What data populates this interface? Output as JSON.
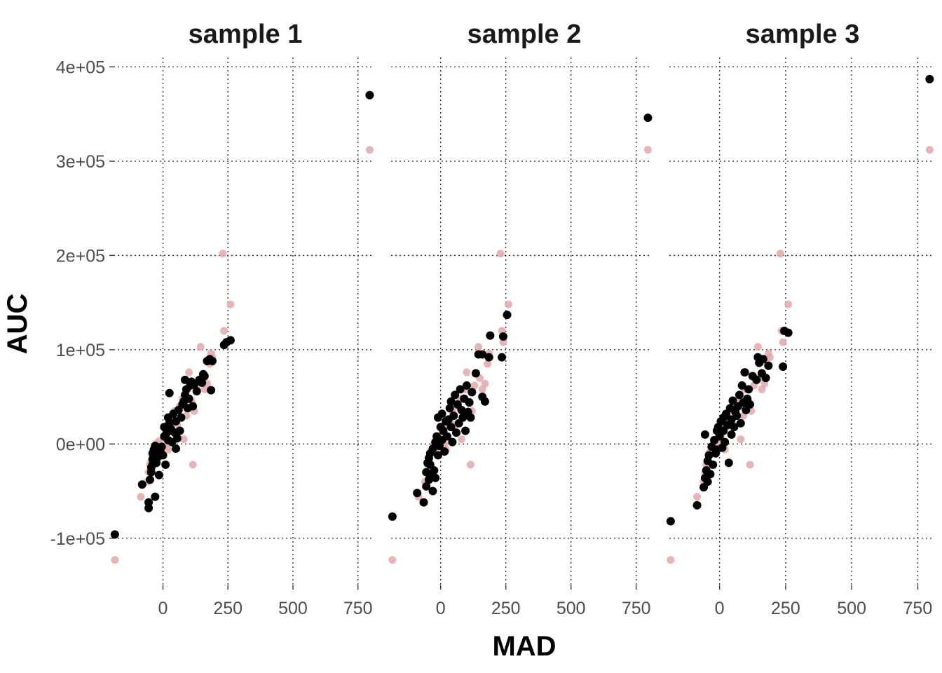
{
  "chart_data": {
    "type": "scatter",
    "xlabel": "MAD",
    "ylabel": "AUC",
    "xlim": [
      -190,
      810
    ],
    "ylim": [
      -150000,
      410000
    ],
    "x_ticks": [
      0,
      250,
      500,
      750
    ],
    "x_tick_labels": [
      "0",
      "250",
      "500",
      "750"
    ],
    "y_ticks": [
      -100000,
      0,
      100000,
      200000,
      300000,
      400000
    ],
    "y_tick_labels": [
      "-1e+05",
      "0e+00",
      "1e+05",
      "2e+05",
      "3e+05",
      "4e+05"
    ],
    "grid": true,
    "legend": "none",
    "reference_color": "#e2a8ad",
    "sample_color": "#000000",
    "reference_points": [
      [
        -185,
        -123000
      ],
      [
        -85,
        -56000
      ],
      [
        -60,
        -40000
      ],
      [
        -55,
        -30000
      ],
      [
        -50,
        -22000
      ],
      [
        -45,
        -18000
      ],
      [
        -40,
        -10000
      ],
      [
        -30,
        -6000
      ],
      [
        -25,
        0
      ],
      [
        -15,
        3000
      ],
      [
        -10,
        -4000
      ],
      [
        0,
        2000
      ],
      [
        5,
        6000
      ],
      [
        10,
        12000
      ],
      [
        15,
        0
      ],
      [
        20,
        -6000
      ],
      [
        25,
        20000
      ],
      [
        35,
        25000
      ],
      [
        45,
        35000
      ],
      [
        55,
        20000
      ],
      [
        65,
        40000
      ],
      [
        75,
        48000
      ],
      [
        80,
        5000
      ],
      [
        90,
        30000
      ],
      [
        95,
        58000
      ],
      [
        100,
        76000
      ],
      [
        110,
        45000
      ],
      [
        115,
        -22000
      ],
      [
        120,
        35000
      ],
      [
        130,
        62000
      ],
      [
        145,
        103000
      ],
      [
        150,
        70000
      ],
      [
        160,
        58000
      ],
      [
        170,
        64000
      ],
      [
        180,
        85000
      ],
      [
        185,
        96000
      ],
      [
        190,
        92000
      ],
      [
        230,
        202000
      ],
      [
        235,
        120000
      ],
      [
        240,
        108000
      ],
      [
        260,
        148000
      ],
      [
        795,
        312000
      ]
    ],
    "series": [
      {
        "points": [
          [
            -185,
            -96000
          ],
          [
            -80,
            -43000
          ],
          [
            -55,
            -68000
          ],
          [
            -55,
            -62000
          ],
          [
            -50,
            -38000
          ],
          [
            -45,
            -30000
          ],
          [
            -45,
            -25000
          ],
          [
            -40,
            -22000
          ],
          [
            -40,
            -16000
          ],
          [
            -40,
            -10000
          ],
          [
            -35,
            -6000
          ],
          [
            -30,
            -56000
          ],
          [
            -30,
            -2000
          ],
          [
            -25,
            -20000
          ],
          [
            -20,
            -14000
          ],
          [
            -15,
            -33000
          ],
          [
            -10,
            -8000
          ],
          [
            -5,
            -3000
          ],
          [
            0,
            -12000
          ],
          [
            5,
            8000
          ],
          [
            5,
            18000
          ],
          [
            10,
            -22000
          ],
          [
            15,
            12000
          ],
          [
            20,
            4000
          ],
          [
            20,
            28000
          ],
          [
            25,
            22000
          ],
          [
            25,
            54000
          ],
          [
            30,
            16000
          ],
          [
            35,
            2000
          ],
          [
            40,
            32000
          ],
          [
            45,
            12000
          ],
          [
            50,
            24000
          ],
          [
            50,
            -5000
          ],
          [
            55,
            6000
          ],
          [
            60,
            36000
          ],
          [
            65,
            14000
          ],
          [
            70,
            28000
          ],
          [
            75,
            42000
          ],
          [
            80,
            45000
          ],
          [
            85,
            52000
          ],
          [
            85,
            68000
          ],
          [
            90,
            58000
          ],
          [
            95,
            38000
          ],
          [
            100,
            48000
          ],
          [
            105,
            62000
          ],
          [
            110,
            66000
          ],
          [
            115,
            40000
          ],
          [
            120,
            63000
          ],
          [
            130,
            56000
          ],
          [
            140,
            68000
          ],
          [
            150,
            65000
          ],
          [
            155,
            74000
          ],
          [
            160,
            72000
          ],
          [
            170,
            88000
          ],
          [
            180,
            90000
          ],
          [
            185,
            57000
          ],
          [
            190,
            88000
          ],
          [
            235,
            105000
          ],
          [
            245,
            108000
          ],
          [
            260,
            110000
          ],
          [
            795,
            370000
          ]
        ]
      },
      {
        "points": [
          [
            -185,
            -77000
          ],
          [
            -90,
            -52000
          ],
          [
            -65,
            -62000
          ],
          [
            -55,
            -45000
          ],
          [
            -55,
            -30000
          ],
          [
            -50,
            -20000
          ],
          [
            -45,
            -38000
          ],
          [
            -45,
            -15000
          ],
          [
            -40,
            -22000
          ],
          [
            -40,
            -10000
          ],
          [
            -35,
            -32000
          ],
          [
            -30,
            -50000
          ],
          [
            -30,
            -5000
          ],
          [
            -25,
            -28000
          ],
          [
            -20,
            -36000
          ],
          [
            -20,
            2000
          ],
          [
            -15,
            8000
          ],
          [
            -10,
            -12000
          ],
          [
            -10,
            28000
          ],
          [
            -5,
            -2000
          ],
          [
            0,
            18000
          ],
          [
            5,
            4000
          ],
          [
            5,
            32000
          ],
          [
            10,
            14000
          ],
          [
            15,
            -8000
          ],
          [
            20,
            24000
          ],
          [
            25,
            8000
          ],
          [
            30,
            26000
          ],
          [
            35,
            38000
          ],
          [
            40,
            18000
          ],
          [
            40,
            45000
          ],
          [
            45,
            2000
          ],
          [
            50,
            30000
          ],
          [
            55,
            52000
          ],
          [
            60,
            12000
          ],
          [
            65,
            42000
          ],
          [
            70,
            22000
          ],
          [
            75,
            58000
          ],
          [
            80,
            36000
          ],
          [
            85,
            28000
          ],
          [
            90,
            48000
          ],
          [
            95,
            14000
          ],
          [
            100,
            62000
          ],
          [
            105,
            34000
          ],
          [
            110,
            44000
          ],
          [
            115,
            28000
          ],
          [
            120,
            55000
          ],
          [
            135,
            75000
          ],
          [
            145,
            95000
          ],
          [
            160,
            95000
          ],
          [
            160,
            50000
          ],
          [
            170,
            45000
          ],
          [
            185,
            92000
          ],
          [
            190,
            115000
          ],
          [
            235,
            92000
          ],
          [
            240,
            114000
          ],
          [
            255,
            137000
          ],
          [
            795,
            346000
          ]
        ]
      },
      {
        "points": [
          [
            -185,
            -82000
          ],
          [
            -85,
            -65000
          ],
          [
            -60,
            -46000
          ],
          [
            -55,
            -36000
          ],
          [
            -55,
            10000
          ],
          [
            -50,
            -28000
          ],
          [
            -45,
            -40000
          ],
          [
            -45,
            -18000
          ],
          [
            -40,
            -12000
          ],
          [
            -35,
            -32000
          ],
          [
            -30,
            -3000
          ],
          [
            -25,
            -22000
          ],
          [
            -20,
            4000
          ],
          [
            -15,
            -10000
          ],
          [
            -10,
            14000
          ],
          [
            -10,
            -6000
          ],
          [
            -5,
            18000
          ],
          [
            0,
            8000
          ],
          [
            5,
            24000
          ],
          [
            10,
            -4000
          ],
          [
            15,
            28000
          ],
          [
            15,
            14000
          ],
          [
            20,
            2000
          ],
          [
            25,
            32000
          ],
          [
            30,
            20000
          ],
          [
            35,
            -20000
          ],
          [
            40,
            38000
          ],
          [
            45,
            10000
          ],
          [
            45,
            26000
          ],
          [
            50,
            46000
          ],
          [
            55,
            18000
          ],
          [
            60,
            34000
          ],
          [
            65,
            30000
          ],
          [
            70,
            40000
          ],
          [
            75,
            52000
          ],
          [
            80,
            22000
          ],
          [
            85,
            62000
          ],
          [
            90,
            44000
          ],
          [
            95,
            76000
          ],
          [
            100,
            36000
          ],
          [
            105,
            48000
          ],
          [
            110,
            58000
          ],
          [
            115,
            42000
          ],
          [
            125,
            72000
          ],
          [
            140,
            68000
          ],
          [
            145,
            92000
          ],
          [
            150,
            86000
          ],
          [
            160,
            75000
          ],
          [
            165,
            90000
          ],
          [
            175,
            70000
          ],
          [
            185,
            83000
          ],
          [
            240,
            82000
          ],
          [
            245,
            120000
          ],
          [
            260,
            118000
          ],
          [
            795,
            387000
          ]
        ]
      }
    ],
    "facets": [
      {
        "title": "sample 1"
      },
      {
        "title": "sample 2"
      },
      {
        "title": "sample 3"
      }
    ]
  }
}
